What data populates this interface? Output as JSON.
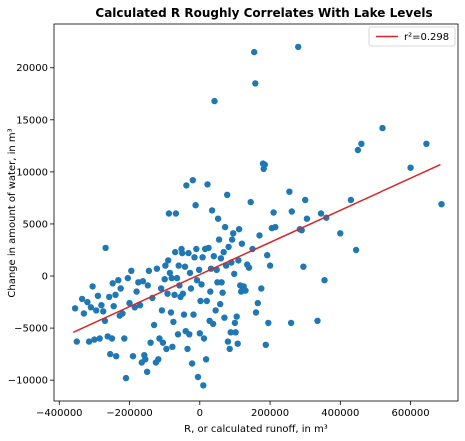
{
  "chart_data": {
    "type": "scatter",
    "title": "Calculated R Roughly Correlates With Lake Levels",
    "xlabel": "R, or calculated runoff, in m³",
    "ylabel": "Change in amount of water, in m³",
    "xlim": [
      -415000,
      735000
    ],
    "ylim": [
      -12000,
      24200
    ],
    "xticks": [
      -400000,
      -200000,
      0,
      200000,
      400000,
      600000
    ],
    "xtick_labels": [
      "−400000",
      "−200000",
      "0",
      "200000",
      "400000",
      "600000"
    ],
    "yticks": [
      -10000,
      -5000,
      0,
      5000,
      10000,
      15000,
      20000
    ],
    "ytick_labels": [
      "−10000",
      "−5000",
      "0",
      "5000",
      "10000",
      "15000",
      "20000"
    ],
    "grid": false,
    "legend_position": "top-right",
    "point_color": "#1f77b4",
    "fit_color": "#d62728",
    "series": [
      {
        "name": "",
        "kind": "scatter",
        "points": [
          [
            -355000,
            -3100
          ],
          [
            -350000,
            -6300
          ],
          [
            -335000,
            -2200
          ],
          [
            -330000,
            -3600
          ],
          [
            -320000,
            -2500
          ],
          [
            -315000,
            -6300
          ],
          [
            -310000,
            -3000
          ],
          [
            -305000,
            -1000
          ],
          [
            -300000,
            -6100
          ],
          [
            -295000,
            -3300
          ],
          [
            -290000,
            -1900
          ],
          [
            -285000,
            -6000
          ],
          [
            -280000,
            -2800
          ],
          [
            -275000,
            -3400
          ],
          [
            -270000,
            -4300
          ],
          [
            -268000,
            2700
          ],
          [
            -262000,
            -5800
          ],
          [
            -258000,
            -2000
          ],
          [
            -255000,
            -7500
          ],
          [
            -250000,
            -6000
          ],
          [
            -248000,
            -700
          ],
          [
            -245000,
            -2900
          ],
          [
            -240000,
            -1800
          ],
          [
            -238000,
            -7700
          ],
          [
            -232000,
            -400
          ],
          [
            -228000,
            -3800
          ],
          [
            -225000,
            -1200
          ],
          [
            -220000,
            -3600
          ],
          [
            -215000,
            -6000
          ],
          [
            -210000,
            -9800
          ],
          [
            -205000,
            -200
          ],
          [
            -200000,
            -2600
          ],
          [
            -195000,
            500
          ],
          [
            -190000,
            -7700
          ],
          [
            -185000,
            -3000
          ],
          [
            -180000,
            -1500
          ],
          [
            -175000,
            -600
          ],
          [
            -170000,
            -2800
          ],
          [
            -165000,
            -8300
          ],
          [
            -162000,
            -500
          ],
          [
            -158000,
            -7600
          ],
          [
            -155000,
            -8000
          ],
          [
            -150000,
            -9200
          ],
          [
            -148000,
            -900
          ],
          [
            -145000,
            500
          ],
          [
            -140000,
            -6400
          ],
          [
            -135000,
            -2100
          ],
          [
            -130000,
            -4700
          ],
          [
            -125000,
            -8300
          ],
          [
            -122000,
            700
          ],
          [
            -118000,
            -8000
          ],
          [
            -115000,
            -6000
          ],
          [
            -110000,
            -1200
          ],
          [
            -108000,
            -3300
          ],
          [
            -105000,
            -6400
          ],
          [
            -100000,
            -300
          ],
          [
            -98000,
            1000
          ],
          [
            -95000,
            -7000
          ],
          [
            -92000,
            -1700
          ],
          [
            -90000,
            1500
          ],
          [
            -88000,
            6000
          ],
          [
            -85000,
            300
          ],
          [
            -82000,
            -3500
          ],
          [
            -80000,
            -200
          ],
          [
            -78000,
            -6800
          ],
          [
            -75000,
            -4400
          ],
          [
            -72000,
            -1800
          ],
          [
            -70000,
            2300
          ],
          [
            -68000,
            6000
          ],
          [
            -65000,
            -200
          ],
          [
            -62000,
            -5600
          ],
          [
            -60000,
            1000
          ],
          [
            -58000,
            -900
          ],
          [
            -55000,
            -2000
          ],
          [
            -52000,
            2600
          ],
          [
            -50000,
            2200
          ],
          [
            -48000,
            -1700
          ],
          [
            -45000,
            -3700
          ],
          [
            -42000,
            900
          ],
          [
            -40000,
            -5300
          ],
          [
            -38000,
            8700
          ],
          [
            -35000,
            -7000
          ],
          [
            -32000,
            2200
          ],
          [
            -30000,
            -5600
          ],
          [
            -28000,
            300
          ],
          [
            -25000,
            -1200
          ],
          [
            -22000,
            -8400
          ],
          [
            -20000,
            9200
          ],
          [
            -18000,
            -3700
          ],
          [
            -15000,
            1800
          ],
          [
            -12000,
            6800
          ],
          [
            -10000,
            2600
          ],
          [
            -8000,
            -400
          ],
          [
            -5000,
            -9700
          ],
          [
            -2000,
            600
          ],
          [
            0,
            -5500
          ],
          [
            2000,
            -2400
          ],
          [
            5000,
            -800
          ],
          [
            8000,
            1800
          ],
          [
            10000,
            -10500
          ],
          [
            12000,
            -6000
          ],
          [
            15000,
            2600
          ],
          [
            18000,
            -8000
          ],
          [
            20000,
            -2400
          ],
          [
            22000,
            8800
          ],
          [
            25000,
            2700
          ],
          [
            28000,
            -4300
          ],
          [
            30000,
            -1500
          ],
          [
            32000,
            700
          ],
          [
            35000,
            6300
          ],
          [
            38000,
            -4600
          ],
          [
            40000,
            1900
          ],
          [
            42000,
            16800
          ],
          [
            45000,
            -3300
          ],
          [
            48000,
            600
          ],
          [
            50000,
            -600
          ],
          [
            52000,
            5500
          ],
          [
            55000,
            3500
          ],
          [
            58000,
            -2700
          ],
          [
            60000,
            1700
          ],
          [
            62000,
            -600
          ],
          [
            65000,
            -1600
          ],
          [
            68000,
            2300
          ],
          [
            70000,
            -4000
          ],
          [
            72000,
            4700
          ],
          [
            75000,
            1000
          ],
          [
            78000,
            7800
          ],
          [
            80000,
            -6300
          ],
          [
            82000,
            2800
          ],
          [
            85000,
            -7000
          ],
          [
            88000,
            -5400
          ],
          [
            90000,
            1300
          ],
          [
            92000,
            3500
          ],
          [
            95000,
            4100
          ],
          [
            98000,
            200
          ],
          [
            100000,
            -4500
          ],
          [
            102000,
            -5400
          ],
          [
            105000,
            -3900
          ],
          [
            108000,
            -6500
          ],
          [
            110000,
            1500
          ],
          [
            112000,
            4500
          ],
          [
            115000,
            -900
          ],
          [
            118000,
            -1500
          ],
          [
            120000,
            3100
          ],
          [
            125000,
            -1000
          ],
          [
            130000,
            -1400
          ],
          [
            135000,
            1100
          ],
          [
            140000,
            800
          ],
          [
            145000,
            7100
          ],
          [
            150000,
            2600
          ],
          [
            155000,
            21500
          ],
          [
            158000,
            18500
          ],
          [
            160000,
            -3500
          ],
          [
            165000,
            -2600
          ],
          [
            170000,
            3900
          ],
          [
            175000,
            -1200
          ],
          [
            180000,
            10800
          ],
          [
            182000,
            10300
          ],
          [
            185000,
            10700
          ],
          [
            188000,
            -6600
          ],
          [
            192000,
            2000
          ],
          [
            195000,
            -4500
          ],
          [
            200000,
            1000
          ],
          [
            205000,
            4600
          ],
          [
            210000,
            6100
          ],
          [
            215000,
            4700
          ],
          [
            255000,
            8100
          ],
          [
            260000,
            -4500
          ],
          [
            262000,
            6200
          ],
          [
            280000,
            22000
          ],
          [
            285000,
            4500
          ],
          [
            290000,
            4400
          ],
          [
            295000,
            900
          ],
          [
            300000,
            7300
          ],
          [
            335000,
            -4300
          ],
          [
            345000,
            6000
          ],
          [
            355000,
            -400
          ],
          [
            360000,
            5600
          ],
          [
            400000,
            4100
          ],
          [
            430000,
            7300
          ],
          [
            445000,
            2500
          ],
          [
            450000,
            12100
          ],
          [
            460000,
            12700
          ],
          [
            520000,
            14200
          ],
          [
            600000,
            10400
          ],
          [
            645000,
            12700
          ],
          [
            688000,
            6900
          ],
          [
            305000,
            5500
          ]
        ]
      },
      {
        "name": "r²=0.298",
        "kind": "line",
        "points": [
          [
            -360000,
            -5400
          ],
          [
            685000,
            10700
          ]
        ]
      }
    ]
  }
}
